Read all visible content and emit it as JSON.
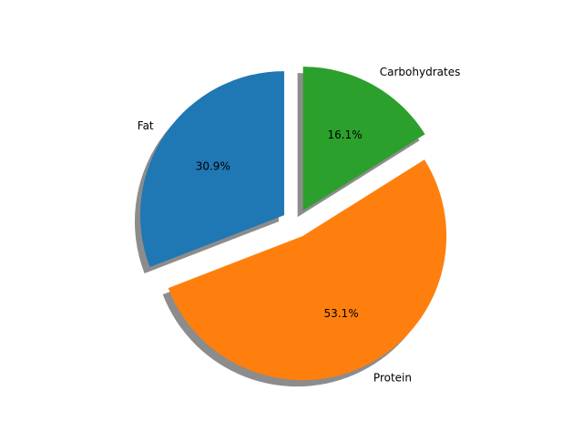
{
  "chart_data": {
    "type": "pie",
    "slices": [
      {
        "label": "Fat",
        "value": 30.9,
        "pct_label": "30.9%",
        "color": "#1f77b4",
        "exploded": true
      },
      {
        "label": "Protein",
        "value": 53.1,
        "pct_label": "53.1%",
        "color": "#ff7f0e",
        "exploded": true
      },
      {
        "label": "Carbohydrates",
        "value": 16.1,
        "pct_label": "16.1%",
        "color": "#2ca02c",
        "exploded": true
      }
    ],
    "start_angle": 90,
    "direction": "counterclockwise",
    "shadow": true
  }
}
